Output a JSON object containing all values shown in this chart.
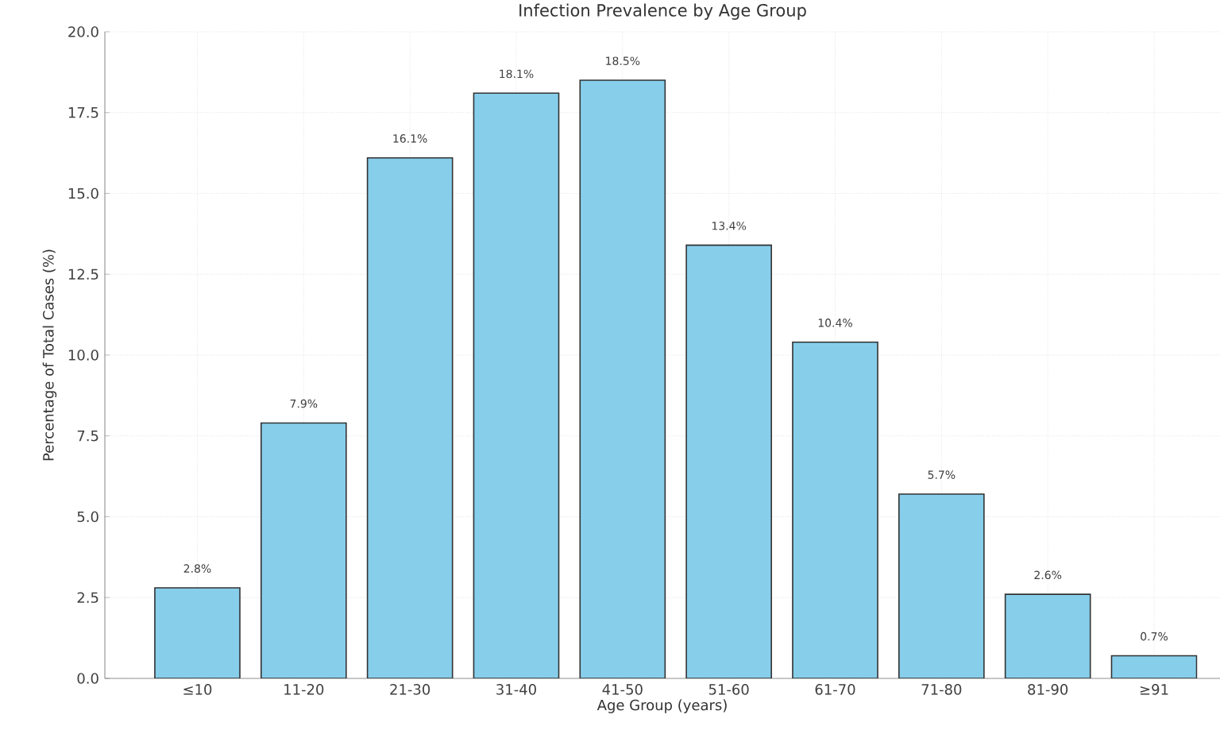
{
  "chart_data": {
    "type": "bar",
    "title": "Infection Prevalence by Age Group",
    "xlabel": "Age Group (years)",
    "ylabel": "Percentage of Total Cases (%)",
    "categories": [
      "≤10",
      "11-20",
      "21-30",
      "31-40",
      "41-50",
      "51-60",
      "61-70",
      "71-80",
      "81-90",
      "≥91"
    ],
    "values": [
      2.8,
      7.9,
      16.1,
      18.1,
      18.5,
      13.4,
      10.4,
      5.7,
      2.6,
      0.7
    ],
    "value_labels": [
      "2.8%",
      "7.9%",
      "16.1%",
      "18.1%",
      "18.5%",
      "13.4%",
      "10.4%",
      "5.7%",
      "2.6%",
      "0.7%"
    ],
    "color": "#87ceeb",
    "ylim": [
      0,
      20
    ],
    "yticks": [
      {
        "value": 0,
        "label": "0.0"
      },
      {
        "value": 2.5,
        "label": "2.5"
      },
      {
        "value": 5,
        "label": "5.0"
      },
      {
        "value": 7.5,
        "label": "7.5"
      },
      {
        "value": 10,
        "label": "10.0"
      },
      {
        "value": 12.5,
        "label": "12.5"
      },
      {
        "value": 15,
        "label": "15.0"
      },
      {
        "value": 17.5,
        "label": "17.5"
      },
      {
        "value": 20,
        "label": "20.0"
      }
    ],
    "grid": true
  }
}
